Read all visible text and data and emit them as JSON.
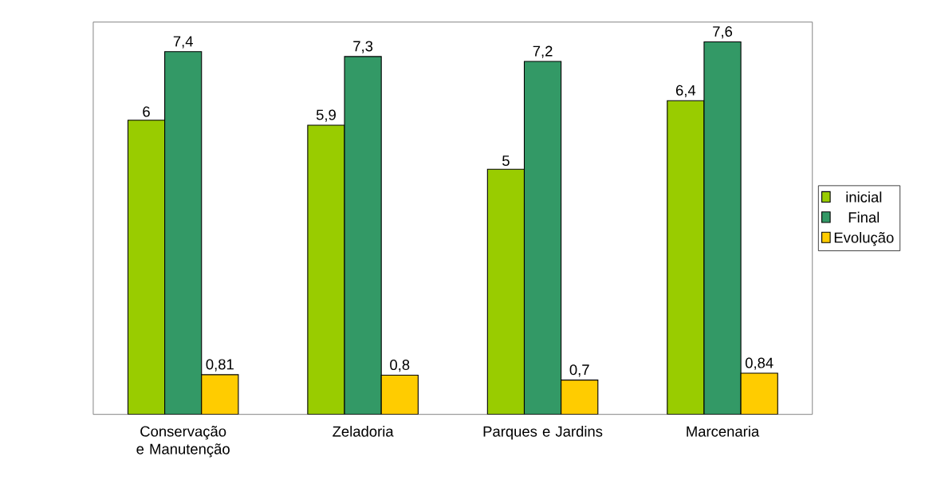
{
  "chart_data": {
    "type": "bar",
    "categories": [
      "Conservação e Manutenção",
      "Zeladoria",
      "Parques e Jardins",
      "Marcenaria"
    ],
    "series": [
      {
        "name": "inicial",
        "color": "#99cc00",
        "values": [
          6,
          5.9,
          5,
          6.4
        ],
        "value_labels": [
          "6",
          "5,9",
          "5",
          "6,4"
        ]
      },
      {
        "name": "Final",
        "color": "#339966",
        "values": [
          7.4,
          7.3,
          7.2,
          7.6
        ],
        "value_labels": [
          "7,4",
          "7,3",
          "7,2",
          "7,6"
        ]
      },
      {
        "name": "Evolução",
        "color": "#ffcc00",
        "values": [
          0.81,
          0.8,
          0.7,
          0.84
        ],
        "value_labels": [
          "0,81",
          "0,8",
          "0,7",
          "0,84"
        ]
      }
    ],
    "grid": false,
    "legend": "right"
  }
}
